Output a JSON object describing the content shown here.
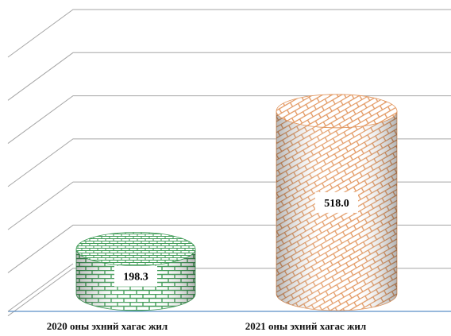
{
  "chart_data": {
    "type": "bar",
    "style": "3d-cylinder",
    "categories": [
      "2020 оны эхний хагас жил",
      "2021 оны эхний хагас жил"
    ],
    "values": [
      198.3,
      518.0
    ],
    "value_labels": [
      "198.3",
      "518.0"
    ],
    "ylim": [
      0,
      700
    ],
    "grid": true,
    "legend": "none",
    "colors": {
      "series_2020": "#3e9a55",
      "series_2021": "#e2965e",
      "gridline": "#a6a6a6",
      "axis": "#5b8fc7"
    }
  }
}
